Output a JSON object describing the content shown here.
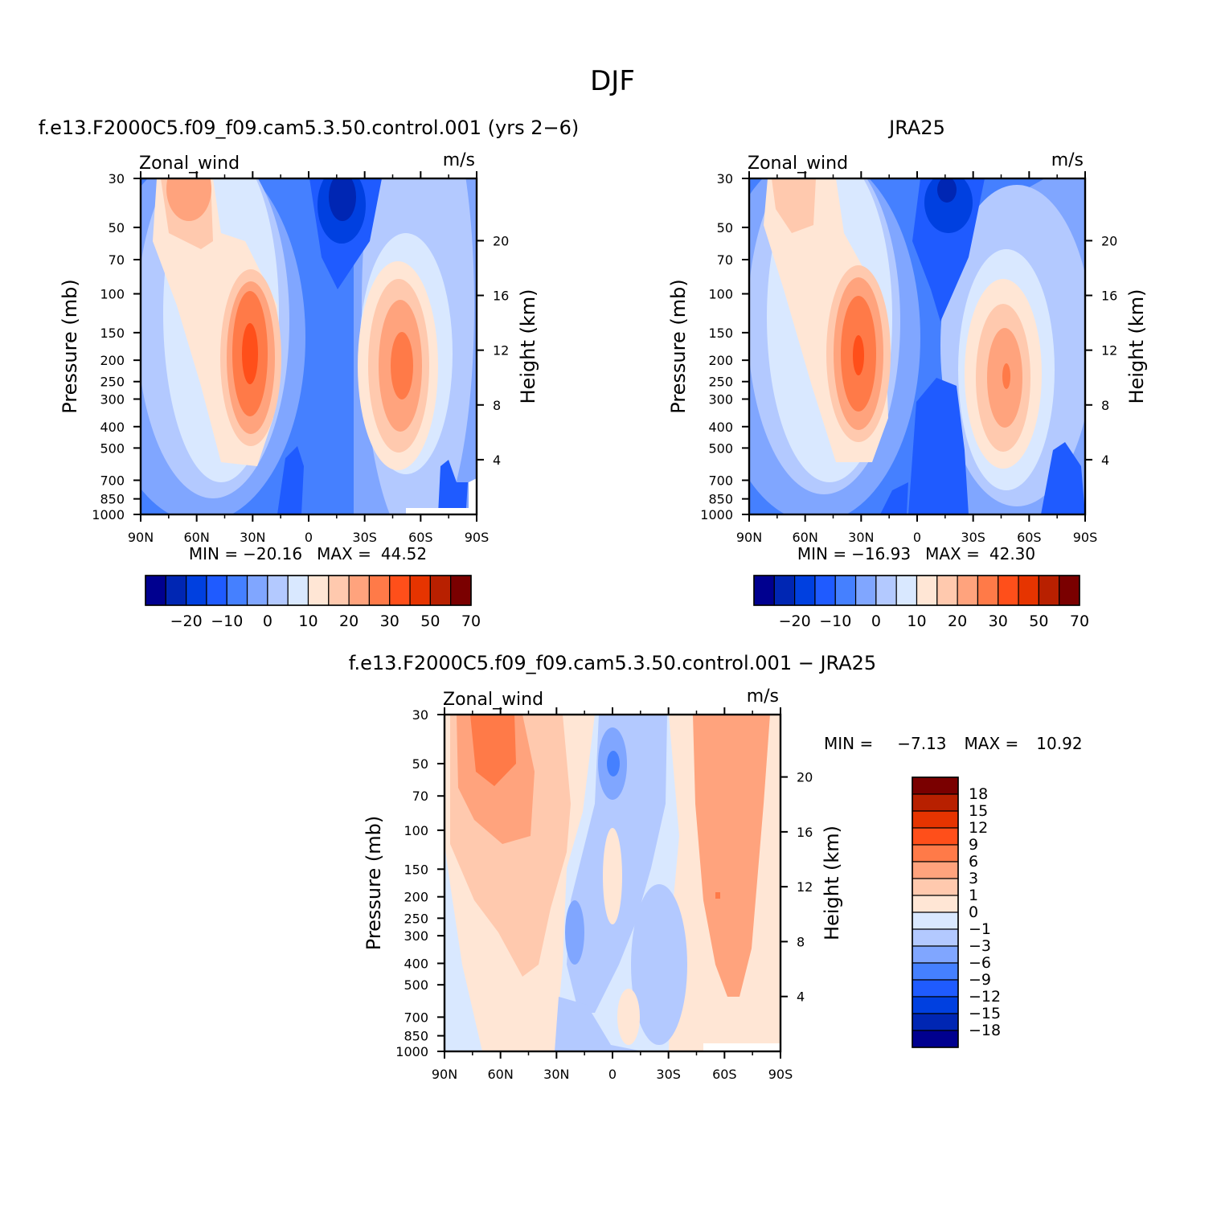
{
  "figure": {
    "title": "DJF"
  },
  "chart_data": [
    {
      "type": "heatmap",
      "id": "model",
      "title": "f.e13.F2000C5.f09_f09.cam5.3.50.control.001 (yrs 2−6)",
      "left_label": "Zonal_wind",
      "right_label": "m/s",
      "ylabel": "Pressure (mb)",
      "ylabel_right": "Height (km)",
      "x_ticks": [
        "90N",
        "60N",
        "30N",
        "0",
        "30S",
        "60S",
        "90S"
      ],
      "y_ticks": [
        "30",
        "50",
        "70",
        "100",
        "150",
        "200",
        "250",
        "300",
        "400",
        "500",
        "700",
        "850",
        "1000"
      ],
      "y_ticks_right": [
        "20",
        "16",
        "12",
        "8",
        "4"
      ],
      "stats": {
        "min_label": "MIN =",
        "min": "−20.16",
        "max_label": "MAX =",
        "max": "44.52"
      },
      "colorbar": {
        "orientation": "horizontal",
        "labels": [
          "−20",
          "−10",
          "0",
          "10",
          "20",
          "30",
          "50",
          "70"
        ]
      },
      "features": [
        {
          "lat": -65,
          "p": 40,
          "value": 38
        },
        {
          "lat": -30,
          "p": 200,
          "value": 44.52
        },
        {
          "lat": 15,
          "p": 35,
          "value": -20.16
        },
        {
          "lat": 50,
          "p": 200,
          "value": 34
        }
      ]
    },
    {
      "type": "heatmap",
      "id": "obs",
      "title": "JRA25",
      "left_label": "Zonal_wind",
      "right_label": "m/s",
      "ylabel": "Pressure (mb)",
      "ylabel_right": "Height (km)",
      "x_ticks": [
        "90N",
        "60N",
        "30N",
        "0",
        "30S",
        "60S",
        "90S"
      ],
      "y_ticks": [
        "30",
        "50",
        "70",
        "100",
        "150",
        "200",
        "250",
        "300",
        "400",
        "500",
        "700",
        "850",
        "1000"
      ],
      "y_ticks_right": [
        "20",
        "16",
        "12",
        "8",
        "4"
      ],
      "stats": {
        "min_label": "MIN =",
        "min": "−16.93",
        "max_label": "MAX =",
        "max": "42.30"
      },
      "colorbar": {
        "orientation": "horizontal",
        "labels": [
          "−20",
          "−10",
          "0",
          "10",
          "20",
          "30",
          "50",
          "70"
        ]
      },
      "features": [
        {
          "lat": -30,
          "p": 200,
          "value": 42.3
        },
        {
          "lat": 15,
          "p": 35,
          "value": -16.93
        },
        {
          "lat": 48,
          "p": 230,
          "value": 33
        }
      ]
    },
    {
      "type": "heatmap",
      "id": "diff",
      "title": "f.e13.F2000C5.f09_f09.cam5.3.50.control.001 − JRA25",
      "left_label": "Zonal_wind",
      "right_label": "m/s",
      "ylabel": "Pressure (mb)",
      "ylabel_right": "Height (km)",
      "x_ticks": [
        "90N",
        "60N",
        "30N",
        "0",
        "30S",
        "60S",
        "90S"
      ],
      "y_ticks": [
        "30",
        "50",
        "70",
        "100",
        "150",
        "200",
        "250",
        "300",
        "400",
        "500",
        "700",
        "850",
        "1000"
      ],
      "y_ticks_right": [
        "20",
        "16",
        "12",
        "8",
        "4"
      ],
      "stats": {
        "min_label": "MIN =",
        "min": "−7.13",
        "max_label": "MAX =",
        "max": "10.92"
      },
      "colorbar": {
        "orientation": "vertical",
        "labels": [
          "18",
          "15",
          "12",
          "9",
          "6",
          "3",
          "1",
          "0",
          "−1",
          "−3",
          "−6",
          "−9",
          "−12",
          "−15",
          "−18"
        ]
      },
      "features": [
        {
          "lat": -60,
          "p": 35,
          "value": 10.92
        },
        {
          "lat": 0,
          "p": 55,
          "value": -7.13
        },
        {
          "lat": 58,
          "p": 200,
          "value": 6
        }
      ]
    }
  ],
  "colors": {
    "palette": [
      "#00008f",
      "#0026b3",
      "#0040e0",
      "#1f5bff",
      "#4580ff",
      "#80a6ff",
      "#b3c9ff",
      "#d9e8ff",
      "#ffe6d5",
      "#ffc9ae",
      "#ffa37d",
      "#ff7a48",
      "#ff4f1a",
      "#e63400",
      "#b82000",
      "#7a0000"
    ]
  }
}
